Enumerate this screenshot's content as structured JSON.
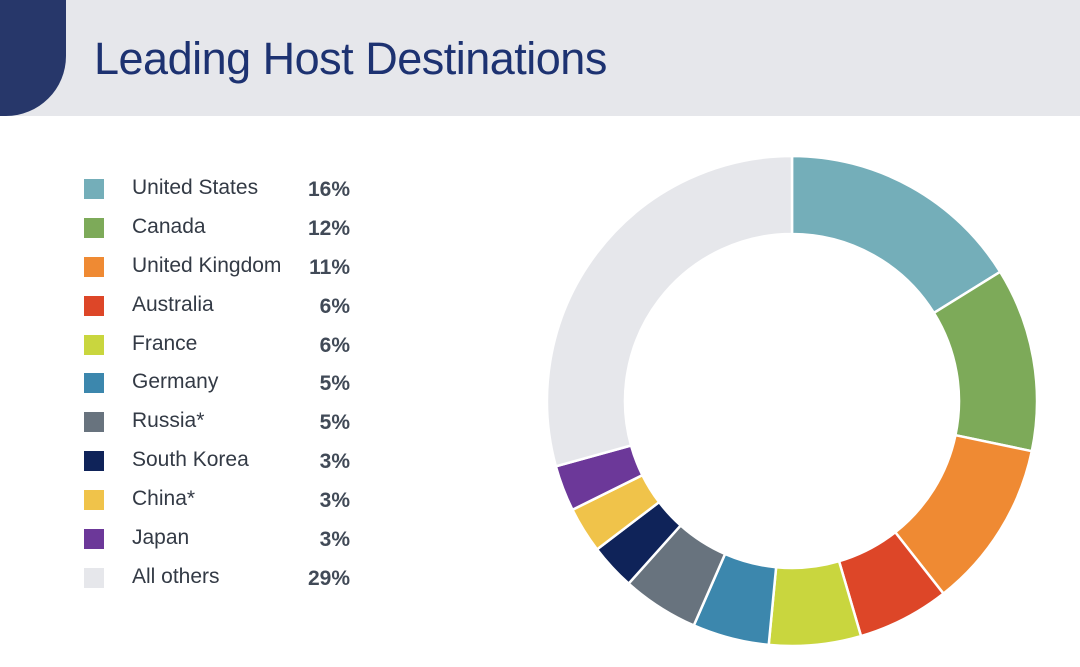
{
  "header": {
    "title": "Leading Host Destinations",
    "icon": "document-list-icon",
    "accent_color": "#27376a",
    "band_color": "#e6e7eb"
  },
  "chart_data": {
    "type": "pie",
    "style": "donut",
    "title": "Leading Host Destinations",
    "legend_position": "left",
    "slices": [
      {
        "label": "United States",
        "value": 16,
        "display": "16%",
        "color": "#74aeb9"
      },
      {
        "label": "Canada",
        "value": 12,
        "display": "12%",
        "color": "#7daa59"
      },
      {
        "label": "United Kingdom",
        "value": 11,
        "display": "11%",
        "color": "#ef8a33"
      },
      {
        "label": "Australia",
        "value": 6,
        "display": "6%",
        "color": "#dd4628"
      },
      {
        "label": "France",
        "value": 6,
        "display": "6%",
        "color": "#c9d63e"
      },
      {
        "label": "Germany",
        "value": 5,
        "display": "5%",
        "color": "#3c87ad"
      },
      {
        "label": "Russia*",
        "value": 5,
        "display": "5%",
        "color": "#68737e"
      },
      {
        "label": "South Korea",
        "value": 3,
        "display": "3%",
        "color": "#0f2359"
      },
      {
        "label": "China*",
        "value": 3,
        "display": "3%",
        "color": "#f0c34a"
      },
      {
        "label": "Japan",
        "value": 3,
        "display": "3%",
        "color": "#6c3899"
      },
      {
        "label": "All others",
        "value": 29,
        "display": "29%",
        "color": "#e6e7eb"
      }
    ]
  }
}
